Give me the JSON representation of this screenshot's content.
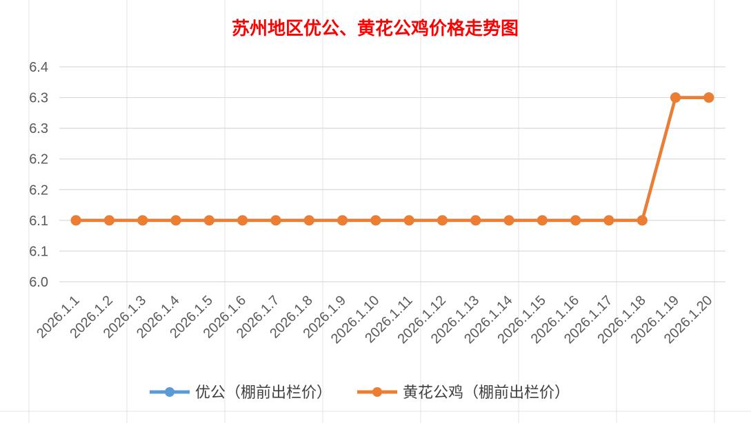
{
  "chart_data": {
    "type": "line",
    "title": "苏州地区优公、黄花公鸡价格走势图",
    "title_color": "#ff0000",
    "categories": [
      "2026.1.1",
      "2026.1.2",
      "2026.1.3",
      "2026.1.4",
      "2026.1.5",
      "2026.1.6",
      "2026.1.7",
      "2026.1.8",
      "2026.1.9",
      "2026.1.10",
      "2026.1.11",
      "2026.1.12",
      "2026.1.13",
      "2026.1.14",
      "2026.1.15",
      "2026.1.16",
      "2026.1.17",
      "2026.1.18",
      "2026.1.19",
      "2026.1.20"
    ],
    "ylim": [
      6.0,
      6.35
    ],
    "yticks": [
      6.0,
      6.05,
      6.1,
      6.15,
      6.2,
      6.25,
      6.3,
      6.35
    ],
    "ytick_labels": [
      "6.0",
      "6.1",
      "6.1",
      "6.2",
      "6.2",
      "6.3",
      "6.3",
      "6.4"
    ],
    "grid": true,
    "legend_position": "bottom",
    "series": [
      {
        "name": "优公（棚前出栏价）",
        "color": "#5b9bd5",
        "values": [
          6.1,
          6.1,
          6.1,
          6.1,
          6.1,
          6.1,
          6.1,
          6.1,
          6.1,
          6.1,
          6.1,
          6.1,
          6.1,
          6.1,
          6.1,
          6.1,
          6.1,
          6.1,
          6.3,
          6.3
        ]
      },
      {
        "name": "黄花公鸡（棚前出栏价）",
        "color": "#ed7d31",
        "values": [
          6.1,
          6.1,
          6.1,
          6.1,
          6.1,
          6.1,
          6.1,
          6.1,
          6.1,
          6.1,
          6.1,
          6.1,
          6.1,
          6.1,
          6.1,
          6.1,
          6.1,
          6.1,
          6.3,
          6.3
        ]
      }
    ]
  }
}
